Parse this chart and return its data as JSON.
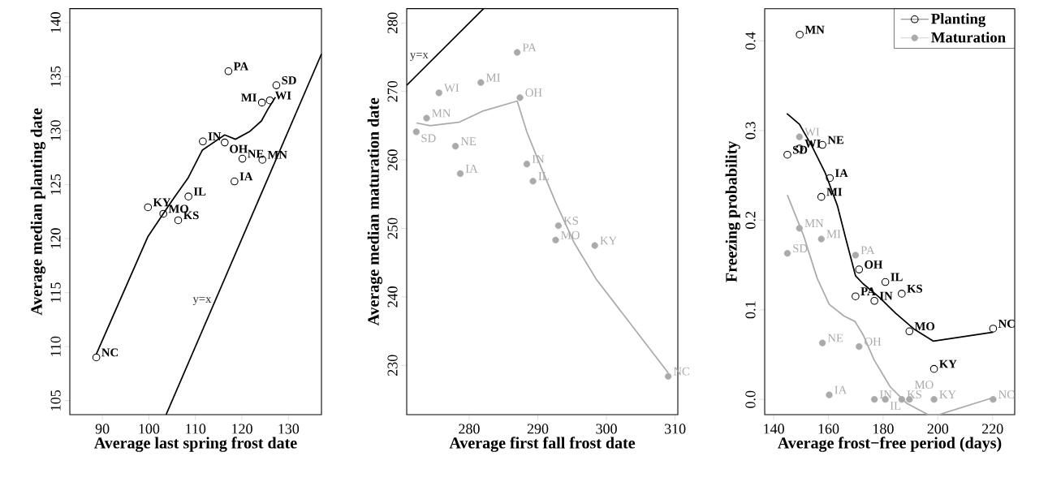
{
  "chart_data": [
    {
      "type": "scatter",
      "xlabel": "Average last spring frost date",
      "ylabel": "Average median planting date",
      "xlim": [
        83.0,
        137.1
      ],
      "ylim": [
        103.7,
        141.3
      ],
      "xticks": [
        90,
        100,
        110,
        120,
        130
      ],
      "yticks": [
        105,
        110,
        115,
        120,
        125,
        130,
        135,
        140
      ],
      "series": [
        {
          "marker": "circle",
          "color": "#000000",
          "x": [
            88.7,
            99.8,
            103.1,
            106.3,
            108.5,
            111.6,
            116.3,
            117.1,
            118.4,
            120.1,
            124.4,
            124.3,
            126.0,
            127.4
          ],
          "values": [
            109.0,
            122.9,
            122.3,
            121.7,
            123.9,
            129.0,
            128.9,
            135.5,
            125.3,
            127.4,
            127.3,
            132.6,
            132.8,
            134.2
          ],
          "value_labels": [
            "NC",
            "KY",
            "MO",
            "KS",
            "IL",
            "IN",
            "OH",
            "PA",
            "IA",
            "NE",
            "MN",
            "MI",
            "WI",
            "SD"
          ]
        },
        {
          "type": "line",
          "color": "#000000",
          "x": [
            88.7,
            99.8,
            105.1,
            108.4,
            111.5,
            116.3,
            118.6,
            121.6,
            124.2,
            125.6,
            127.2
          ],
          "values": [
            109.3,
            120.2,
            123.6,
            125.6,
            128.2,
            129.6,
            129.2,
            129.9,
            130.9,
            132.0,
            133.1
          ]
        },
        {
          "name": "y=x",
          "type": "line",
          "color": "#000000",
          "x": [
            103.7,
            137.1
          ],
          "values": [
            103.7,
            137.1
          ]
        }
      ]
    },
    {
      "type": "scatter",
      "xlabel": "Average first fall frost date",
      "ylabel": "Average median maturation date",
      "xlim": [
        270.9,
        310.4
      ],
      "ylim": [
        222.8,
        282.1
      ],
      "xticks": [
        280,
        290,
        300,
        310
      ],
      "yticks": [
        230,
        240,
        250,
        260,
        270,
        280
      ],
      "series": [
        {
          "marker": "circle",
          "color": "#aaaaaa",
          "x": [
            272.3,
            273.8,
            275.6,
            278.0,
            278.7,
            281.7,
            287.0,
            287.4,
            288.4,
            289.3,
            293.0,
            292.6,
            298.3,
            309.0
          ],
          "values": [
            264.1,
            266.1,
            269.8,
            262.0,
            258.0,
            271.3,
            275.7,
            269.1,
            259.4,
            256.9,
            250.4,
            248.3,
            247.5,
            228.4
          ],
          "value_labels": [
            "SD",
            "MN",
            "WI",
            "NE",
            "IA",
            "MI",
            "PA",
            "OH",
            "IN",
            "IL",
            "KS",
            "MO",
            "KY",
            "NC"
          ]
        },
        {
          "type": "line",
          "color": "#aaaaaa",
          "x": [
            272.3,
            274.3,
            278.5,
            281.9,
            287.0,
            288.4,
            290.4,
            292.6,
            295.3,
            298.5,
            309.0
          ],
          "values": [
            265.4,
            265.0,
            265.5,
            267.1,
            268.6,
            264.1,
            259.1,
            253.8,
            247.9,
            242.6,
            228.9
          ]
        },
        {
          "name": "y=x",
          "type": "line",
          "color": "#000000",
          "x": [
            270.9,
            282.1
          ],
          "values": [
            270.9,
            282.1
          ]
        }
      ]
    },
    {
      "type": "scatter",
      "xlabel": "Average frost−free period (days)",
      "ylabel": "Freezing probability",
      "xlim": [
        136.7,
        228.1
      ],
      "ylim": [
        -0.017,
        0.436
      ],
      "xticks": [
        140,
        160,
        180,
        200,
        220
      ],
      "yticks": [
        {
          "value": 0,
          "label": "0.0"
        },
        0.1,
        0.2,
        0.3,
        0.4
      ],
      "legend": "top right",
      "series": [
        {
          "name": "Planting",
          "marker": "circle",
          "color": "#000000",
          "x": [
            149.5,
            145.0,
            149.4,
            157.8,
            160.5,
            157.4,
            171.2,
            180.8,
            169.9,
            176.8,
            186.8,
            189.6,
            198.6,
            220.2
          ],
          "values": [
            0.407,
            0.273,
            0.28,
            0.284,
            0.247,
            0.226,
            0.145,
            0.131,
            0.115,
            0.11,
            0.118,
            0.076,
            0.034,
            0.079
          ],
          "value_labels": [
            "MN",
            "SD",
            "WI",
            "NE",
            "IA",
            "MI",
            "OH",
            "IL",
            "PA",
            "IN",
            "KS",
            "MO",
            "KY",
            "NC"
          ]
        },
        {
          "name": "Maturation",
          "marker": "circle",
          "color": "#aaaaaa",
          "x": [
            149.4,
            149.4,
            157.4,
            145.0,
            169.9,
            157.8,
            171.2,
            160.3,
            176.8,
            180.8,
            186.8,
            189.6,
            198.6,
            220.2
          ],
          "values": [
            0.293,
            0.191,
            0.179,
            0.163,
            0.161,
            0.063,
            0.059,
            0.005,
            0,
            0,
            0,
            0,
            0,
            0
          ],
          "value_labels": [
            "WI",
            "MN",
            "MI",
            "SD",
            "PA",
            "NE",
            "OH",
            "IA",
            "IN",
            "IL",
            "KS",
            "MO",
            "KY",
            "NC"
          ]
        },
        {
          "type": "line",
          "color": "#000000",
          "x": [
            144.8,
            149.4,
            153.9,
            158.8,
            163.3,
            166.3,
            169.9,
            172.7,
            178.6,
            184.6,
            191.5,
            198.4,
            220.2
          ],
          "values": [
            0.319,
            0.307,
            0.283,
            0.253,
            0.216,
            0.18,
            0.138,
            0.129,
            0.114,
            0.096,
            0.078,
            0.065,
            0.075
          ]
        },
        {
          "type": "line",
          "color": "#aaaaaa",
          "x": [
            145.0,
            150.9,
            155.9,
            160.3,
            165.7,
            169.7,
            172.7,
            176.7,
            182.6,
            188.5,
            196.4,
            200.4,
            220.2
          ],
          "values": [
            0.228,
            0.183,
            0.135,
            0.106,
            0.093,
            0.087,
            0.072,
            0.044,
            0.014,
            -0.004,
            -0.017,
            -0.017,
            0.002
          ]
        }
      ]
    }
  ]
}
